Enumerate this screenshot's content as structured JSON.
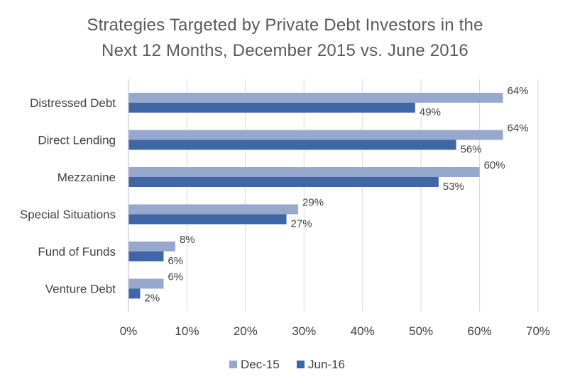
{
  "chart_data": {
    "type": "bar",
    "orientation": "horizontal",
    "title": "Strategies Targeted by Private Debt Investors in the Next 12 Months, December 2015 vs. June 2016",
    "title_lines": [
      "Strategies Targeted by Private Debt Investors in the",
      "Next 12 Months, December 2015 vs. June 2016"
    ],
    "categories": [
      "Distressed Debt",
      "Direct Lending",
      "Mezzanine",
      "Special Situations",
      "Fund of Funds",
      "Venture Debt"
    ],
    "series": [
      {
        "name": "Dec-15",
        "color": "#97A8CF",
        "values": [
          64,
          64,
          60,
          29,
          8,
          6
        ],
        "labels": [
          "64%",
          "64%",
          "60%",
          "29%",
          "8%",
          "6%"
        ]
      },
      {
        "name": "Jun-16",
        "color": "#3F67A6",
        "values": [
          49,
          56,
          53,
          27,
          6,
          2
        ],
        "labels": [
          "49%",
          "56%",
          "53%",
          "27%",
          "6%",
          "2%"
        ]
      }
    ],
    "xlim": [
      0,
      70
    ],
    "x_ticks": [
      "0%",
      "10%",
      "20%",
      "30%",
      "40%",
      "50%",
      "60%",
      "70%"
    ],
    "grid": true,
    "gridline_color": "#D9D9D9",
    "legend_position": "bottom"
  }
}
